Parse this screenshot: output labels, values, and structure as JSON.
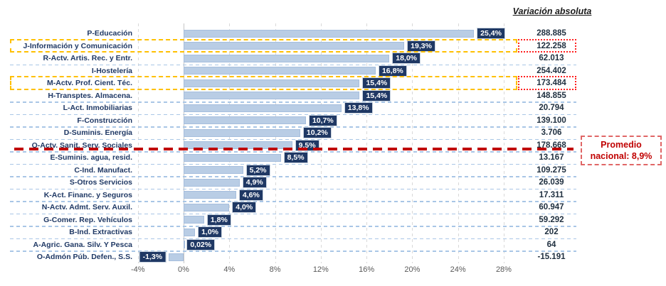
{
  "colors": {
    "bar_fill": "#B9CDE5",
    "bar_border": "#A6BEDD",
    "chip_navy": "#1F3864",
    "chip_text": "#FFFFFF",
    "category_text": "#1F3864",
    "highlight_yellow": "#FFC000",
    "highlight_red_dotted": "#FF2020",
    "average_red": "#C00000",
    "gridline_gray": "#D9D9D9",
    "row_separator_blue": "#A9C6E6"
  },
  "chart_data": {
    "type": "bar",
    "orientation": "horizontal",
    "unit": "%",
    "grid": true,
    "xlim": [
      -4.2,
      29
    ],
    "x_ticks": [
      -4,
      0,
      4,
      8,
      12,
      16,
      20,
      24,
      28
    ],
    "x_tick_labels": [
      "-4%",
      "0%",
      "4%",
      "8%",
      "12%",
      "16%",
      "20%",
      "24%",
      "28%"
    ],
    "right_column": {
      "header": "Variación absoluta"
    },
    "average_line": {
      "value": 8.9,
      "label": "Promedio nacional: 8,9%",
      "callout_line1": "Promedio",
      "callout_line2": "nacional: 8,9%"
    },
    "rows": [
      {
        "label": "P-Educación",
        "pct": 25.4,
        "pct_label": "25,4%",
        "abs": "288.885",
        "highlight": false,
        "sep": false
      },
      {
        "label": "J-Información y Comunicación",
        "pct": 19.3,
        "pct_label": "19,3%",
        "abs": "122.258",
        "highlight": true,
        "sep": false
      },
      {
        "label": "R-Actv. Artis. Rec. y Entr.",
        "pct": 18.0,
        "pct_label": "18,0%",
        "abs": "62.013",
        "highlight": false,
        "sep": true
      },
      {
        "label": "I-Hostelería",
        "pct": 16.8,
        "pct_label": "16,8%",
        "abs": "254.402",
        "highlight": false,
        "sep": false
      },
      {
        "label": "M-Actv. Prof. Cient. Téc.",
        "pct": 15.4,
        "pct_label": "15,4%",
        "abs": "173.484",
        "highlight": true,
        "sep": false
      },
      {
        "label": "H-Transptes. Almacena.",
        "pct": 15.4,
        "pct_label": "15,4%",
        "abs": "148.855",
        "highlight": false,
        "sep": true
      },
      {
        "label": "L-Act. Inmobiliarias",
        "pct": 13.8,
        "pct_label": "13,8%",
        "abs": "20.794",
        "highlight": false,
        "sep": true
      },
      {
        "label": "F-Construcción",
        "pct": 10.7,
        "pct_label": "10,7%",
        "abs": "139.100",
        "highlight": false,
        "sep": true
      },
      {
        "label": "D-Suminis. Energía",
        "pct": 10.2,
        "pct_label": "10,2%",
        "abs": "3.706",
        "highlight": false,
        "sep": true
      },
      {
        "label": "Q-Actv. Sanit. Serv. Sociales",
        "pct": 9.5,
        "pct_label": "9,5%",
        "abs": "178.668",
        "highlight": false,
        "sep": true,
        "average_line_below": true
      },
      {
        "label": "E-Suminis. agua, resid.",
        "pct": 8.5,
        "pct_label": "8,5%",
        "abs": "13.167",
        "highlight": false,
        "sep": true
      },
      {
        "label": "C-Ind. Manufact.",
        "pct": 5.2,
        "pct_label": "5,2%",
        "abs": "109.275",
        "highlight": false,
        "sep": true
      },
      {
        "label": "S-Otros Servicios",
        "pct": 4.9,
        "pct_label": "4,9%",
        "abs": "26.039",
        "highlight": false,
        "sep": true
      },
      {
        "label": "K-Act. Financ. y Seguros",
        "pct": 4.6,
        "pct_label": "4,6%",
        "abs": "17.311",
        "highlight": false,
        "sep": true
      },
      {
        "label": "N-Actv. Admt. Serv. Auxil.",
        "pct": 4.0,
        "pct_label": "4,0%",
        "abs": "60.947",
        "highlight": false,
        "sep": true
      },
      {
        "label": "G-Comer. Rep. Vehículos",
        "pct": 1.8,
        "pct_label": "1,8%",
        "abs": "59.292",
        "highlight": false,
        "sep": true
      },
      {
        "label": "B-Ind. Extractivas",
        "pct": 1.0,
        "pct_label": "1,0%",
        "abs": "202",
        "highlight": false,
        "sep": true
      },
      {
        "label": "A-Agric. Gana. Silv. Y Pesca",
        "pct": 0.02,
        "pct_label": "0,02%",
        "abs": "64",
        "highlight": false,
        "sep": true
      },
      {
        "label": "O-Admón Púb. Defen., S.S.",
        "pct": -1.3,
        "pct_label": "-1,3%",
        "abs": "-15.191",
        "highlight": false,
        "sep": false
      }
    ]
  }
}
